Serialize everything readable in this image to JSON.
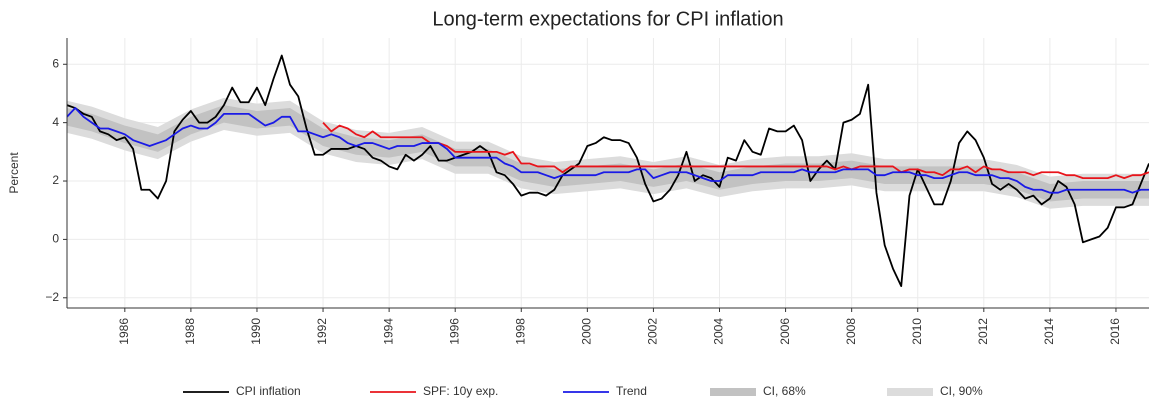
{
  "chart_data": {
    "type": "line",
    "title": "Long-term expectations for CPI inflation",
    "ylabel": "Percent",
    "grid": true,
    "legend": "bottom",
    "xlim": [
      1984.25,
      2017.0
    ],
    "xticks": [
      1986,
      1988,
      1990,
      1992,
      1994,
      1996,
      1998,
      2000,
      2002,
      2004,
      2006,
      2008,
      2010,
      2012,
      2014,
      2016
    ],
    "ylim": [
      -2.35,
      6.9
    ],
    "yticks": [
      {
        "value": -2,
        "label": "−2"
      },
      0,
      2,
      4,
      6
    ],
    "x": [
      1984.25,
      1984.5,
      1984.75,
      1985,
      1985.25,
      1985.5,
      1985.75,
      1986,
      1986.25,
      1986.5,
      1986.75,
      1987,
      1987.25,
      1987.5,
      1987.75,
      1988,
      1988.25,
      1988.5,
      1988.75,
      1989,
      1989.25,
      1989.5,
      1989.75,
      1990,
      1990.25,
      1990.5,
      1990.75,
      1991,
      1991.25,
      1991.5,
      1991.75,
      1992,
      1992.25,
      1992.5,
      1992.75,
      1993,
      1993.25,
      1993.5,
      1993.75,
      1994,
      1994.25,
      1994.5,
      1994.75,
      1995,
      1995.25,
      1995.5,
      1995.75,
      1996,
      1996.25,
      1996.5,
      1996.75,
      1997,
      1997.25,
      1997.5,
      1997.75,
      1998,
      1998.25,
      1998.5,
      1998.75,
      1999,
      1999.25,
      1999.5,
      1999.75,
      2000,
      2000.25,
      2000.5,
      2000.75,
      2001,
      2001.25,
      2001.5,
      2001.75,
      2002,
      2002.25,
      2002.5,
      2002.75,
      2003,
      2003.25,
      2003.5,
      2003.75,
      2004,
      2004.25,
      2004.5,
      2004.75,
      2005,
      2005.25,
      2005.5,
      2005.75,
      2006,
      2006.25,
      2006.5,
      2006.75,
      2007,
      2007.25,
      2007.5,
      2007.75,
      2008,
      2008.25,
      2008.5,
      2008.75,
      2009,
      2009.25,
      2009.5,
      2009.75,
      2010,
      2010.25,
      2010.5,
      2010.75,
      2011,
      2011.25,
      2011.5,
      2011.75,
      2012,
      2012.25,
      2012.5,
      2012.75,
      2013,
      2013.25,
      2013.5,
      2013.75,
      2014,
      2014.25,
      2014.5,
      2014.75,
      2015,
      2015.25,
      2015.5,
      2015.75,
      2016,
      2016.25,
      2016.5,
      2016.75,
      2017
    ],
    "bands": [
      {
        "name": "CI, 90%",
        "color": "#dcdcdc",
        "x": [
          1984.25,
          1985,
          1986,
          1987,
          1988,
          1989,
          1990,
          1991,
          1992,
          1993,
          1994,
          1995,
          1996,
          1997,
          1998,
          1999,
          2000,
          2001,
          2002,
          2003,
          2004,
          2005,
          2006,
          2007,
          2008,
          2009,
          2010,
          2011,
          2012,
          2013,
          2014,
          2015,
          2016,
          2017
        ],
        "lower": [
          3.65,
          3.45,
          3.05,
          2.75,
          3.35,
          3.75,
          3.55,
          3.65,
          2.95,
          2.65,
          2.55,
          2.75,
          2.25,
          2.25,
          1.75,
          1.55,
          1.65,
          1.75,
          1.55,
          1.75,
          1.45,
          1.65,
          1.75,
          1.75,
          1.85,
          1.65,
          1.65,
          1.65,
          1.65,
          1.45,
          1.05,
          1.15,
          1.15,
          1.15
        ],
        "upper": [
          4.75,
          4.55,
          4.15,
          3.85,
          4.45,
          4.85,
          4.65,
          4.75,
          4.05,
          3.75,
          3.65,
          3.85,
          3.35,
          3.35,
          2.85,
          2.65,
          2.75,
          2.85,
          2.65,
          2.85,
          2.55,
          2.75,
          2.85,
          2.85,
          2.95,
          2.75,
          2.75,
          2.75,
          2.75,
          2.55,
          2.15,
          2.25,
          2.25,
          2.25
        ]
      },
      {
        "name": "CI, 68%",
        "color": "#c2c2c2",
        "x": [
          1984.25,
          1985,
          1986,
          1987,
          1988,
          1989,
          1990,
          1991,
          1992,
          1993,
          1994,
          1995,
          1996,
          1997,
          1998,
          1999,
          2000,
          2001,
          2002,
          2003,
          2004,
          2005,
          2006,
          2007,
          2008,
          2009,
          2010,
          2011,
          2012,
          2013,
          2014,
          2015,
          2016,
          2017
        ],
        "lower": [
          3.9,
          3.7,
          3.3,
          3.0,
          3.6,
          4.0,
          3.8,
          3.9,
          3.2,
          2.9,
          2.8,
          3.0,
          2.5,
          2.5,
          2.0,
          1.8,
          1.9,
          2.0,
          1.8,
          2.0,
          1.7,
          1.9,
          2.0,
          2.0,
          2.1,
          1.9,
          1.9,
          1.9,
          1.9,
          1.7,
          1.3,
          1.4,
          1.4,
          1.4
        ],
        "upper": [
          4.5,
          4.3,
          3.9,
          3.6,
          4.2,
          4.6,
          4.4,
          4.5,
          3.8,
          3.5,
          3.4,
          3.6,
          3.1,
          3.1,
          2.6,
          2.4,
          2.5,
          2.6,
          2.4,
          2.6,
          2.3,
          2.5,
          2.6,
          2.6,
          2.7,
          2.5,
          2.5,
          2.5,
          2.5,
          2.3,
          1.9,
          2.0,
          2.0,
          2.0
        ]
      }
    ],
    "series": [
      {
        "name": "CPI inflation",
        "color": "#000000",
        "values": [
          4.6,
          4.5,
          4.3,
          4.2,
          3.7,
          3.6,
          3.4,
          3.5,
          3.1,
          1.7,
          1.7,
          1.4,
          2.0,
          3.7,
          4.1,
          4.4,
          4.0,
          4.0,
          4.2,
          4.6,
          5.2,
          4.7,
          4.7,
          5.2,
          4.6,
          5.5,
          6.3,
          5.3,
          4.9,
          3.8,
          2.9,
          2.9,
          3.1,
          3.1,
          3.1,
          3.2,
          3.1,
          2.8,
          2.7,
          2.5,
          2.4,
          2.9,
          2.7,
          2.9,
          3.2,
          2.7,
          2.7,
          2.8,
          2.9,
          3.0,
          3.2,
          3.0,
          2.3,
          2.2,
          1.9,
          1.5,
          1.6,
          1.6,
          1.5,
          1.7,
          2.2,
          2.4,
          2.6,
          3.2,
          3.3,
          3.5,
          3.4,
          3.4,
          3.3,
          2.8,
          1.9,
          1.3,
          1.4,
          1.7,
          2.2,
          3.0,
          2.0,
          2.2,
          2.1,
          1.8,
          2.8,
          2.7,
          3.4,
          3.0,
          2.9,
          3.8,
          3.7,
          3.7,
          3.9,
          3.4,
          2.0,
          2.4,
          2.7,
          2.4,
          4.0,
          4.1,
          4.3,
          5.3,
          1.6,
          -0.2,
          -1.0,
          -1.6,
          1.5,
          2.4,
          1.8,
          1.2,
          1.2,
          2.0,
          3.3,
          3.7,
          3.4,
          2.8,
          1.9,
          1.7,
          1.9,
          1.7,
          1.4,
          1.5,
          1.2,
          1.4,
          2.0,
          1.8,
          1.2,
          -0.1,
          0.0,
          0.1,
          0.4,
          1.1,
          1.1,
          1.2,
          1.9,
          2.6
        ]
      },
      {
        "name": "SPF: 10y exp.",
        "color": "#e8141b",
        "values": [
          null,
          null,
          null,
          null,
          null,
          null,
          null,
          null,
          null,
          null,
          null,
          null,
          null,
          null,
          null,
          null,
          null,
          null,
          null,
          null,
          null,
          null,
          null,
          null,
          null,
          null,
          null,
          null,
          null,
          null,
          null,
          4.0,
          3.7,
          3.9,
          3.8,
          3.6,
          3.5,
          3.7,
          3.5,
          3.5,
          3.5,
          3.5,
          3.5,
          3.5,
          3.3,
          3.3,
          3.2,
          3.0,
          3.0,
          3.0,
          3.0,
          3.0,
          3.0,
          2.9,
          3.0,
          2.6,
          2.6,
          2.5,
          2.5,
          2.5,
          2.3,
          2.5,
          2.5,
          2.5,
          2.5,
          2.5,
          2.5,
          2.5,
          2.5,
          2.5,
          2.5,
          2.5,
          2.5,
          2.5,
          2.5,
          2.5,
          2.5,
          2.5,
          2.5,
          2.5,
          2.5,
          2.5,
          2.5,
          2.5,
          2.5,
          2.5,
          2.5,
          2.5,
          2.5,
          2.5,
          2.5,
          2.5,
          2.5,
          2.4,
          2.5,
          2.4,
          2.5,
          2.5,
          2.5,
          2.5,
          2.5,
          2.3,
          2.4,
          2.4,
          2.3,
          2.3,
          2.2,
          2.4,
          2.4,
          2.5,
          2.3,
          2.5,
          2.4,
          2.4,
          2.3,
          2.3,
          2.3,
          2.2,
          2.3,
          2.3,
          2.3,
          2.2,
          2.2,
          2.1,
          2.1,
          2.1,
          2.1,
          2.2,
          2.1,
          2.2,
          2.2,
          2.3
        ]
      },
      {
        "name": "Trend",
        "color": "#1a1ae6",
        "values": [
          4.2,
          4.5,
          4.2,
          4.0,
          3.8,
          3.8,
          3.7,
          3.6,
          3.4,
          3.3,
          3.2,
          3.3,
          3.4,
          3.6,
          3.8,
          3.9,
          3.8,
          3.8,
          4.0,
          4.3,
          4.3,
          4.3,
          4.3,
          4.1,
          3.9,
          4.0,
          4.2,
          4.2,
          3.7,
          3.7,
          3.6,
          3.5,
          3.6,
          3.5,
          3.3,
          3.2,
          3.3,
          3.3,
          3.2,
          3.1,
          3.2,
          3.2,
          3.2,
          3.3,
          3.3,
          3.3,
          3.1,
          2.8,
          2.8,
          2.8,
          2.8,
          2.8,
          2.8,
          2.6,
          2.5,
          2.3,
          2.3,
          2.3,
          2.2,
          2.1,
          2.2,
          2.2,
          2.2,
          2.2,
          2.2,
          2.3,
          2.3,
          2.3,
          2.3,
          2.4,
          2.4,
          2.1,
          2.2,
          2.3,
          2.3,
          2.3,
          2.2,
          2.1,
          2.0,
          2.0,
          2.2,
          2.2,
          2.2,
          2.2,
          2.3,
          2.3,
          2.3,
          2.3,
          2.3,
          2.4,
          2.3,
          2.3,
          2.3,
          2.3,
          2.4,
          2.4,
          2.4,
          2.4,
          2.2,
          2.2,
          2.3,
          2.3,
          2.3,
          2.2,
          2.2,
          2.1,
          2.1,
          2.2,
          2.3,
          2.3,
          2.2,
          2.2,
          2.2,
          2.1,
          2.1,
          2.0,
          1.8,
          1.7,
          1.7,
          1.6,
          1.6,
          1.7,
          1.7,
          1.7,
          1.7,
          1.7,
          1.7,
          1.7,
          1.7,
          1.6,
          1.7,
          1.7
        ]
      }
    ]
  }
}
